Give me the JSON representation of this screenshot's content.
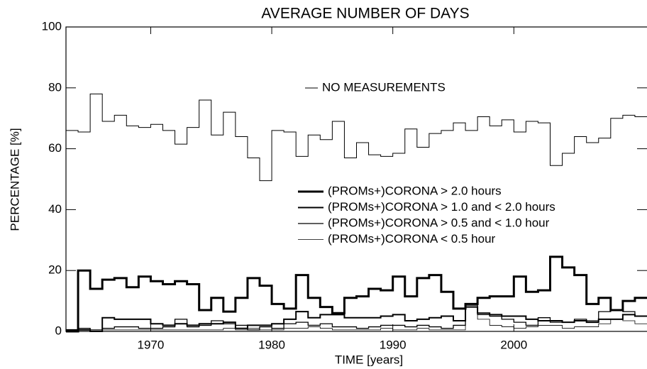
{
  "chart_data": {
    "type": "step",
    "title": "AVERAGE NUMBER OF DAYS",
    "xlabel": "TIME [years]",
    "ylabel": "PERCENTAGE [%]",
    "xlim": [
      1963,
      2011
    ],
    "xticks": [
      1970,
      1980,
      1990,
      2000
    ],
    "ylim": [
      0,
      100
    ],
    "yticks": [
      0,
      20,
      40,
      60,
      80,
      100
    ],
    "x": [
      1963,
      1964,
      1965,
      1966,
      1967,
      1968,
      1969,
      1970,
      1971,
      1972,
      1973,
      1974,
      1975,
      1976,
      1977,
      1978,
      1979,
      1980,
      1981,
      1982,
      1983,
      1984,
      1985,
      1986,
      1987,
      1988,
      1989,
      1990,
      1991,
      1992,
      1993,
      1994,
      1995,
      1996,
      1997,
      1998,
      1999,
      2000,
      2001,
      2002,
      2003,
      2004,
      2005,
      2006,
      2007,
      2008,
      2009,
      2010
    ],
    "series": [
      {
        "name": "NO MEASUREMENTS",
        "color": "#000000",
        "line_width": 1,
        "values": [
          66,
          65.5,
          78,
          69,
          71,
          67.5,
          67,
          68,
          66,
          61.5,
          67,
          76,
          64.5,
          72,
          64,
          57,
          49.5,
          66,
          65.5,
          57.5,
          64.5,
          63,
          69,
          57,
          62,
          58,
          57.5,
          58.5,
          66.5,
          60.5,
          65,
          66,
          68.5,
          66,
          70.5,
          67.5,
          69.5,
          65.5,
          69,
          68.5,
          54.5,
          58.5,
          64,
          62,
          63.5,
          70,
          71,
          70.5
        ]
      },
      {
        "name": "(PROMs+)CORONA > 2.0 hours",
        "color": "#000000",
        "line_width": 3,
        "values": [
          0,
          20,
          14,
          17,
          17.5,
          14.5,
          18,
          16.5,
          15.5,
          16.5,
          15.5,
          7,
          11,
          6.5,
          11,
          17.5,
          15,
          9,
          7.5,
          18.5,
          11,
          8,
          6,
          11,
          11.5,
          14,
          13.5,
          18,
          11.5,
          17.5,
          18.5,
          13,
          7.5,
          9,
          11,
          11.5,
          11.5,
          18,
          13,
          13.5,
          24.5,
          21,
          18.5,
          9,
          11,
          7,
          10,
          11
        ]
      },
      {
        "name": "(PROMs+)CORONA > 1.0 and < 2.0 hours",
        "color": "#000000",
        "line_width": 2,
        "values": [
          0.5,
          0.5,
          0,
          4.5,
          4,
          4,
          4,
          2.5,
          2,
          2.5,
          2,
          2.5,
          2.5,
          3,
          1,
          2,
          2,
          2.5,
          4,
          6.5,
          4.5,
          5.5,
          5.5,
          4.5,
          4.5,
          4.5,
          5,
          5.5,
          3.5,
          4,
          4.5,
          5,
          3.5,
          8,
          6,
          5.5,
          5,
          5,
          4,
          3.5,
          3.5,
          3,
          3.5,
          3,
          4,
          4,
          5.5,
          5
        ]
      },
      {
        "name": "(PROMs+)CORONA > 0.5 and < 1.0 hour",
        "color": "#000000",
        "line_width": 1.3,
        "values": [
          0.3,
          1,
          0.5,
          1,
          1.5,
          1.5,
          1,
          1,
          1.5,
          4,
          1.5,
          2,
          3.5,
          2.5,
          2,
          0.5,
          1.5,
          1,
          2.5,
          3,
          2,
          2.5,
          1.5,
          1.5,
          1,
          1.5,
          2,
          2,
          1.5,
          2,
          1.5,
          1,
          2,
          9,
          5.5,
          5,
          4,
          3,
          2,
          4.5,
          3,
          3,
          4,
          3.5,
          6.5,
          7,
          6.5,
          5
        ]
      },
      {
        "name": "(PROMs+)CORONA < 0.5 hour",
        "color": "#000000",
        "line_width": 0.8,
        "values": [
          0.5,
          0.5,
          0,
          0.5,
          0.5,
          0.5,
          0.5,
          0.5,
          0.5,
          0.5,
          0.5,
          0.5,
          0.5,
          1,
          0.5,
          1,
          0.5,
          0.5,
          1,
          1,
          1.5,
          1,
          0.5,
          0.5,
          0.5,
          0.5,
          1,
          0.5,
          0.5,
          1,
          0.5,
          0.5,
          0.5,
          8.5,
          4,
          2,
          1.5,
          1,
          1.5,
          2,
          2,
          1,
          1.5,
          1.5,
          2.5,
          4,
          3.5,
          2.5
        ]
      }
    ]
  }
}
